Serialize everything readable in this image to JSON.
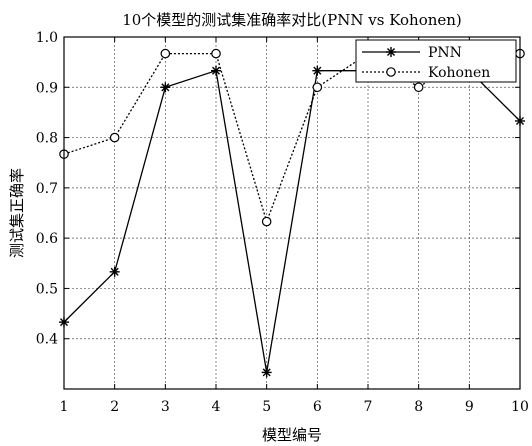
{
  "chart_data": {
    "type": "line",
    "title": "10个模型的测试集准确率对比(PNN  vs  Kohonen)",
    "xlabel": "模型编号",
    "ylabel": "测试集正确率",
    "xlim": [
      1,
      10
    ],
    "ylim": [
      0.3,
      1.0
    ],
    "xticks": [
      "1",
      "2",
      "3",
      "4",
      "5",
      "6",
      "7",
      "8",
      "9",
      "10"
    ],
    "yticks": [
      "0.4",
      "0.5",
      "0.6",
      "0.7",
      "0.8",
      "0.9",
      "1.0"
    ],
    "grid": true,
    "legend_position": "top-right",
    "x": [
      1,
      2,
      3,
      4,
      5,
      6,
      7,
      8,
      9,
      10
    ],
    "series": [
      {
        "name": "PNN",
        "marker": "asterisk",
        "line_style": "solid",
        "color": "#000000",
        "values": [
          0.433,
          0.533,
          0.9,
          0.933,
          0.333,
          0.933,
          0.933,
          0.967,
          0.933,
          0.833
        ]
      },
      {
        "name": "Kohonen",
        "marker": "circle",
        "line_style": "dotted",
        "color": "#000000",
        "values": [
          0.767,
          0.8,
          0.967,
          0.967,
          0.633,
          0.9,
          0.967,
          0.9,
          0.967,
          0.967
        ]
      }
    ]
  }
}
